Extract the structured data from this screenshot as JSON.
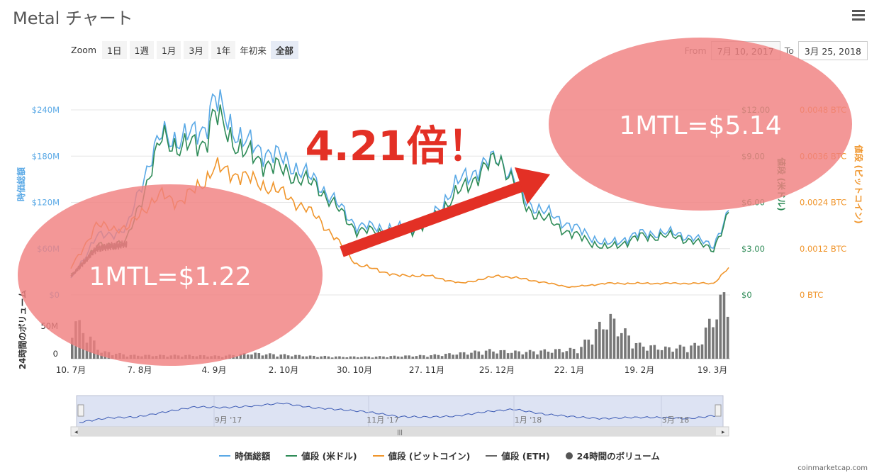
{
  "header": {
    "title": "Metal チャート",
    "menu_icon": "hamburger-menu-icon"
  },
  "zoom": {
    "label": "Zoom",
    "buttons": [
      "1日",
      "1週",
      "1月",
      "3月",
      "1年",
      "年初来",
      "全部"
    ],
    "active": "全部"
  },
  "range": {
    "from_label": "From",
    "from_value": "7月 10, 2017",
    "to_label": "To",
    "to_value": "3月 25, 2018"
  },
  "annotations": {
    "multiplier": "4.21倍！",
    "start_price": "1MTL=$1.22",
    "end_price": "1MTL=$5.14"
  },
  "axes": {
    "left_title": "時価総額",
    "left_ticks": [
      "$0",
      "$60M",
      "$120M",
      "$180M",
      "$240M"
    ],
    "usd_title": "値段 (米ドル)",
    "usd_ticks": [
      "$0",
      "$3.00",
      "$6.00",
      "$9.00",
      "$12.00"
    ],
    "btc_title": "値段 (ビットコイン)",
    "btc_ticks": [
      "0 BTC",
      "0.0012 BTC",
      "0.0024 BTC",
      "0.0036 BTC",
      "0.0048 BTC"
    ],
    "vol_title": "24時間のボリューム",
    "vol_ticks": [
      "0",
      "50M"
    ],
    "x_ticks": [
      "10. 7月",
      "7. 8月",
      "4. 9月",
      "2. 10月",
      "30. 10月",
      "27. 11月",
      "25. 12月",
      "22. 1月",
      "19. 2月",
      "19. 3月"
    ],
    "nav_ticks": [
      "9月 '17",
      "11月 '17",
      "1月 '18",
      "3月 '18"
    ]
  },
  "colors": {
    "market_cap": "#5aa9e6",
    "usd": "#2e8b57",
    "btc": "#f0952b",
    "eth": "#666666",
    "volume": "#777777",
    "highlight": "#f08080",
    "arrow": "#e33025"
  },
  "chart_data": {
    "type": "line",
    "title": "Metal チャート",
    "x": [
      "2017-07-10",
      "2017-07-20",
      "2017-08-01",
      "2017-08-07",
      "2017-08-15",
      "2017-08-22",
      "2017-09-01",
      "2017-09-04",
      "2017-09-15",
      "2017-10-02",
      "2017-10-15",
      "2017-10-30",
      "2017-11-15",
      "2017-11-27",
      "2017-12-10",
      "2017-12-25",
      "2018-01-05",
      "2018-01-22",
      "2018-02-05",
      "2018-02-19",
      "2018-03-05",
      "2018-03-19",
      "2018-03-25"
    ],
    "series": [
      {
        "name": "時価総額",
        "axis": "USD market cap",
        "values": [
          20,
          75,
          85,
          150,
          210,
          200,
          220,
          255,
          200,
          175,
          145,
          90,
          85,
          95,
          150,
          180,
          120,
          90,
          65,
          80,
          80,
          65,
          105
        ]
      },
      {
        "name": "値段 (米ドル)",
        "axis": "USD",
        "values": [
          1.22,
          3.1,
          3.5,
          6.4,
          10.3,
          9.5,
          10.0,
          11.8,
          9.3,
          8.0,
          7.0,
          4.2,
          4.0,
          4.6,
          6.8,
          9.0,
          5.6,
          4.0,
          3.0,
          3.8,
          3.8,
          3.0,
          5.14
        ]
      },
      {
        "name": "値段 (ビットコイン)",
        "axis": "BTC",
        "values": [
          0.0007,
          0.0018,
          0.0017,
          0.0022,
          0.0026,
          0.0024,
          0.003,
          0.0033,
          0.0031,
          0.0026,
          0.002,
          0.0008,
          0.0005,
          0.0005,
          0.0003,
          0.0005,
          0.0004,
          0.0002,
          0.0003,
          0.0003,
          0.0003,
          0.0003,
          0.0007
        ]
      },
      {
        "name": "値段 (ETH)",
        "axis": "USD",
        "values": [
          1.2,
          3.0,
          3.3,
          null,
          null,
          null,
          null,
          null,
          null,
          null,
          null,
          null,
          null,
          null,
          null,
          null,
          null,
          null,
          null,
          null,
          null,
          null,
          null
        ]
      },
      {
        "name": "24時間のボリューム",
        "axis": "volume",
        "values": [
          60,
          10,
          5,
          5,
          5,
          4,
          8,
          6,
          4,
          3,
          3,
          4,
          5,
          8,
          12,
          10,
          12,
          14,
          60,
          20,
          15,
          20,
          100
        ]
      }
    ],
    "ylabel_left": "時価総額",
    "ylabel_right": "値段 (米ドル)",
    "ylabel_right2": "値段 (ビットコイン)",
    "ylim_left": [
      0,
      240
    ],
    "ylim_usd": [
      0,
      12
    ],
    "ylim_btc": [
      0,
      0.0048
    ],
    "grid": true,
    "legend": "bottom"
  },
  "legend": {
    "items": [
      "時価総額",
      "値段 (米ドル)",
      "値段 (ビットコイン)",
      "値段 (ETH)",
      "24時間のボリューム"
    ]
  },
  "credit": "coinmarketcap.com"
}
